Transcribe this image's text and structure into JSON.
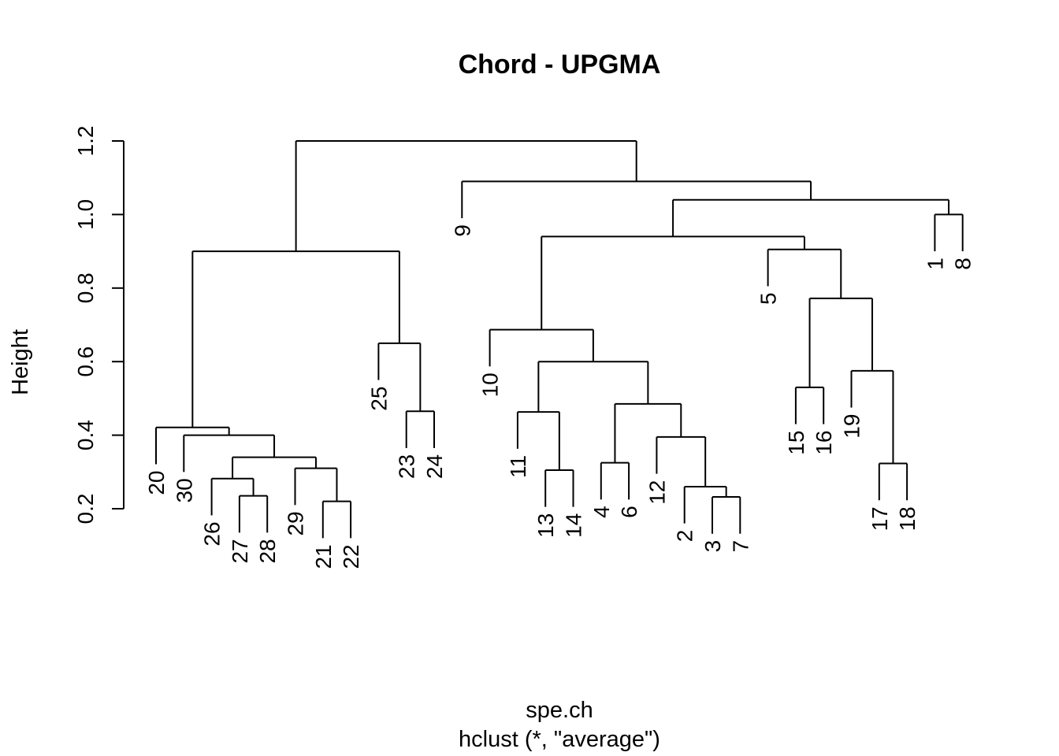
{
  "chart_data": {
    "type": "dendrogram",
    "title": "Chord - UPGMA",
    "xlabel": "spe.ch",
    "sublabel": "hclust (*, \"average\")",
    "ylabel": "Height",
    "ylim": [
      0.2,
      1.25
    ],
    "yticks": [
      "0.2",
      "0.4",
      "0.6",
      "0.8",
      "1.0",
      "1.2"
    ],
    "hang": 0.1,
    "leaves": [
      {
        "label": "20",
        "height": 0.421
      },
      {
        "label": "30",
        "height": 0.4
      },
      {
        "label": "26",
        "height": 0.282
      },
      {
        "label": "27",
        "height": 0.235
      },
      {
        "label": "28",
        "height": 0.235
      },
      {
        "label": "29",
        "height": 0.31
      },
      {
        "label": "21",
        "height": 0.22
      },
      {
        "label": "22",
        "height": 0.22
      },
      {
        "label": "25",
        "height": 0.65
      },
      {
        "label": "23",
        "height": 0.465
      },
      {
        "label": "24",
        "height": 0.465
      },
      {
        "label": "9",
        "height": 1.09
      },
      {
        "label": "10",
        "height": 0.687
      },
      {
        "label": "11",
        "height": 0.463
      },
      {
        "label": "13",
        "height": 0.305
      },
      {
        "label": "14",
        "height": 0.305
      },
      {
        "label": "4",
        "height": 0.325
      },
      {
        "label": "6",
        "height": 0.325
      },
      {
        "label": "12",
        "height": 0.395
      },
      {
        "label": "2",
        "height": 0.26
      },
      {
        "label": "3",
        "height": 0.232
      },
      {
        "label": "7",
        "height": 0.232
      },
      {
        "label": "5",
        "height": 0.905
      },
      {
        "label": "15",
        "height": 0.53
      },
      {
        "label": "16",
        "height": 0.53
      },
      {
        "label": "19",
        "height": 0.575
      },
      {
        "label": "17",
        "height": 0.323
      },
      {
        "label": "18",
        "height": 0.323
      },
      {
        "label": "1",
        "height": 1.0
      },
      {
        "label": "8",
        "height": 1.0
      }
    ],
    "merges": [
      {
        "children": [
          "L27",
          "L28"
        ],
        "height": 0.235
      },
      {
        "children": [
          "L26",
          "M1"
        ],
        "height": 0.282
      },
      {
        "children": [
          "L21",
          "L22"
        ],
        "height": 0.22
      },
      {
        "children": [
          "L29",
          "M3"
        ],
        "height": 0.31
      },
      {
        "children": [
          "M2",
          "M4"
        ],
        "height": 0.34
      },
      {
        "children": [
          "L30",
          "M5"
        ],
        "height": 0.4
      },
      {
        "children": [
          "L20",
          "M6"
        ],
        "height": 0.421
      },
      {
        "children": [
          "L23",
          "L24"
        ],
        "height": 0.465
      },
      {
        "children": [
          "L25",
          "M8"
        ],
        "height": 0.65
      },
      {
        "children": [
          "M7",
          "M9"
        ],
        "height": 0.9
      },
      {
        "children": [
          "L13",
          "L14"
        ],
        "height": 0.305
      },
      {
        "children": [
          "L11",
          "M11"
        ],
        "height": 0.463
      },
      {
        "children": [
          "L4",
          "L6"
        ],
        "height": 0.325
      },
      {
        "children": [
          "L3",
          "L7"
        ],
        "height": 0.232
      },
      {
        "children": [
          "L2",
          "M14"
        ],
        "height": 0.26
      },
      {
        "children": [
          "L12",
          "M15"
        ],
        "height": 0.395
      },
      {
        "children": [
          "M13",
          "M16"
        ],
        "height": 0.485
      },
      {
        "children": [
          "M12",
          "M17"
        ],
        "height": 0.6
      },
      {
        "children": [
          "L10",
          "M18"
        ],
        "height": 0.687
      },
      {
        "children": [
          "L15",
          "L16"
        ],
        "height": 0.53
      },
      {
        "children": [
          "L17",
          "L18"
        ],
        "height": 0.323
      },
      {
        "children": [
          "L19",
          "M21"
        ],
        "height": 0.575
      },
      {
        "children": [
          "M20",
          "M22"
        ],
        "height": 0.772
      },
      {
        "children": [
          "L5",
          "M23"
        ],
        "height": 0.905
      },
      {
        "children": [
          "M19",
          "M24"
        ],
        "height": 0.94
      },
      {
        "children": [
          "L1",
          "L8"
        ],
        "height": 1.0
      },
      {
        "children": [
          "M25",
          "M26"
        ],
        "height": 1.04
      },
      {
        "children": [
          "L9",
          "M27"
        ],
        "height": 1.09
      },
      {
        "children": [
          "M10",
          "M28"
        ],
        "height": 1.2
      }
    ]
  }
}
